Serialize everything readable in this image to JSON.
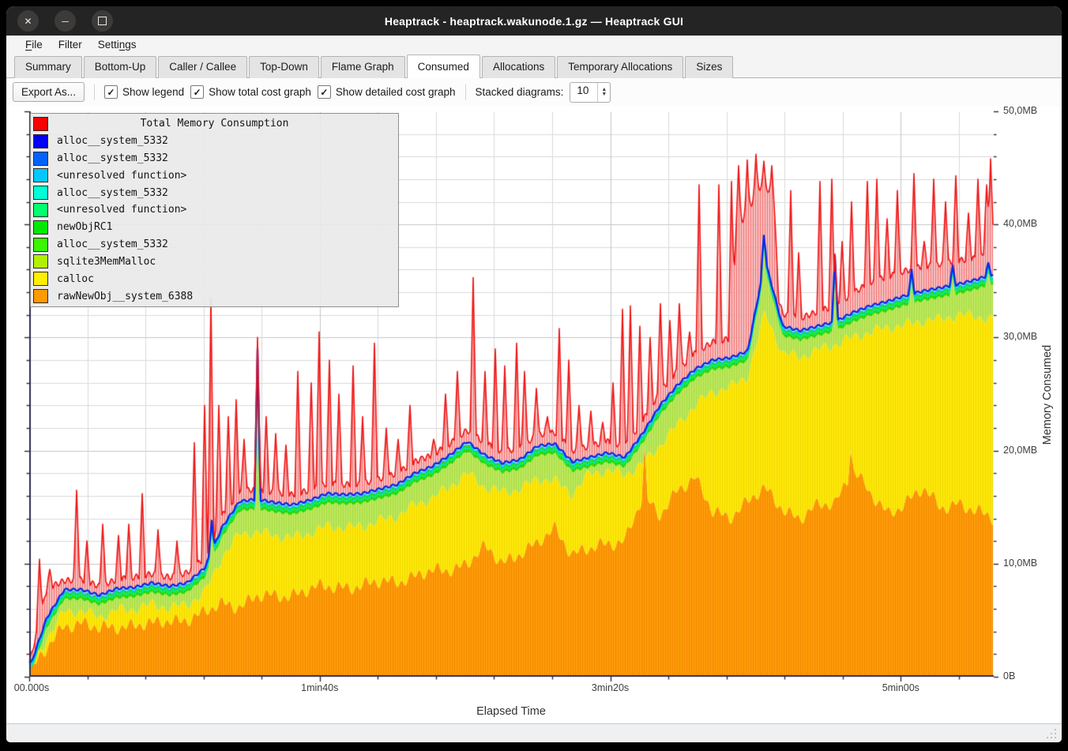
{
  "window": {
    "title": "Heaptrack - heaptrack.wakunode.1.gz — Heaptrack GUI",
    "controls": [
      {
        "name": "close"
      },
      {
        "name": "minimize"
      },
      {
        "name": "maximize"
      }
    ]
  },
  "menu": {
    "items": [
      {
        "label": "File",
        "accel": 0
      },
      {
        "label": "Filter",
        "accel": -1
      },
      {
        "label": "Settings",
        "accel": 5
      }
    ]
  },
  "tabs": {
    "active_index": 5,
    "items": [
      "Summary",
      "Bottom-Up",
      "Caller / Callee",
      "Top-Down",
      "Flame Graph",
      "Consumed",
      "Allocations",
      "Temporary Allocations",
      "Sizes"
    ]
  },
  "toolbar": {
    "export_label": "Export As...",
    "checkboxes": [
      {
        "label": "Show legend",
        "checked": true,
        "glyph": "✓"
      },
      {
        "label": "Show total cost graph",
        "checked": true,
        "glyph": "✓"
      },
      {
        "label": "Show detailed cost graph",
        "checked": true,
        "glyph": "✓"
      }
    ],
    "stacked_label": "Stacked diagrams:",
    "stacked_value": "10"
  },
  "statusbar": {
    "text": ""
  },
  "chart_data": {
    "type": "area",
    "title": "Total Memory Consumption",
    "xlabel": "Elapsed Time",
    "ylabel": "Memory Consumed",
    "ylim": [
      0,
      50
    ],
    "duration_s": 332,
    "grid": true,
    "legend_position": "top-left",
    "legend": [
      {
        "label": "Total Memory Consumption",
        "color": "#fb0000"
      },
      {
        "label": "alloc__system_5332",
        "color": "#0000f5"
      },
      {
        "label": "alloc__system_5332",
        "color": "#0063ff"
      },
      {
        "label": "<unresolved function>",
        "color": "#00c8ff"
      },
      {
        "label": "alloc__system_5332",
        "color": "#00ffd5"
      },
      {
        "label": "<unresolved function>",
        "color": "#00ff6e"
      },
      {
        "label": "newObjRC1",
        "color": "#00e800"
      },
      {
        "label": "alloc__system_5332",
        "color": "#3cf500"
      },
      {
        "label": "sqlite3MemMalloc",
        "color": "#b2f000"
      },
      {
        "label": "calloc",
        "color": "#ffee00"
      },
      {
        "label": "rawNewObj__system_6388",
        "color": "#ff9900"
      }
    ],
    "y_ticks": {
      "minor_step_mb": 2,
      "majors": [
        {
          "mb": 0,
          "label": "0B"
        },
        {
          "mb": 10,
          "label": "10,0MB"
        },
        {
          "mb": 20,
          "label": "20,0MB"
        },
        {
          "mb": 30,
          "label": "30,0MB"
        },
        {
          "mb": 40,
          "label": "40,0MB"
        },
        {
          "mb": 50,
          "label": "50,0MB"
        }
      ]
    },
    "x_ticks": {
      "minor_step_s": 20,
      "majors": [
        {
          "s": 0,
          "label": "00.000s"
        },
        {
          "s": 100,
          "label": "1min40s"
        },
        {
          "s": 200,
          "label": "3min20s"
        },
        {
          "s": 300,
          "label": "5min00s"
        }
      ]
    },
    "band_colors": {
      "orange": [
        "#f28900",
        "#ff9d0a"
      ],
      "yellow": [
        "#f0d800",
        "#ffe90a"
      ],
      "yellowgreen": [
        "#a8da42",
        "#bce95e"
      ],
      "green": [
        "#28c804",
        "#33e00a"
      ],
      "spring_line": "#00f09c",
      "cyan_line": "#00c8ff",
      "blue_line": "#0a28e8",
      "red_line": "#f01414",
      "red_hatch": [
        "#ec5c5c",
        "#f8b2b2"
      ]
    },
    "cumulative_tops_mb": {
      "note": "56 uniform samples spanning 0..duration_s; stacked layer top edges in MB",
      "orange": [
        0.25,
        2.4,
        4.7,
        4.8,
        4.1,
        4.5,
        4.7,
        4.5,
        5.0,
        5.2,
        5.5,
        6.5,
        6.4,
        7.0,
        7.1,
        7.4,
        7.7,
        7.9,
        8.1,
        8.0,
        8.3,
        8.6,
        8.9,
        9.2,
        9.6,
        10.1,
        11.3,
        10.2,
        11.0,
        11.6,
        13.2,
        11.0,
        11.2,
        11.7,
        12.3,
        15.8,
        14.2,
        16.8,
        17.5,
        14.5,
        14.3,
        15.5,
        16.5,
        15.0,
        14.0,
        15.0,
        15.5,
        18.5,
        16.0,
        14.5,
        15.5,
        16.5,
        15.0,
        15.5,
        14.5,
        14.0
      ],
      "yellow": [
        0.45,
        3.4,
        5.8,
        5.8,
        5.3,
        5.9,
        6.0,
        6.4,
        6.1,
        6.4,
        7.4,
        10.6,
        12.6,
        12.8,
        12.5,
        12.3,
        12.7,
        13.3,
        13.2,
        13.3,
        13.8,
        14.2,
        15.2,
        15.8,
        16.8,
        18.0,
        16.8,
        16.3,
        16.6,
        17.5,
        17.3,
        16.2,
        18.0,
        18.2,
        17.9,
        18.8,
        20.5,
        22.3,
        24.0,
        25.2,
        25.6,
        26.6,
        32.2,
        28.6,
        28.3,
        28.9,
        29.4,
        30.0,
        30.5,
        30.9,
        31.1,
        31.5,
        31.6,
        32.0,
        31.9,
        31.6
      ],
      "blue": [
        0.7,
        5.2,
        7.7,
        7.7,
        7.2,
        7.8,
        7.9,
        8.3,
        8.0,
        8.3,
        9.6,
        13.2,
        15.5,
        15.7,
        15.4,
        15.2,
        15.6,
        16.2,
        16.1,
        16.2,
        16.6,
        17.0,
        18.0,
        18.6,
        19.6,
        20.8,
        19.6,
        18.9,
        19.2,
        20.4,
        20.6,
        19.0,
        19.4,
        19.8,
        19.4,
        21.5,
        24.0,
        25.8,
        27.2,
        28.0,
        28.2,
        28.8,
        36.8,
        31.0,
        30.6,
        31.0,
        31.4,
        32.2,
        32.8,
        33.2,
        33.7,
        34.1,
        34.4,
        34.7,
        35.1,
        35.6
      ],
      "red_base": [
        1.1,
        7.8,
        8.5,
        8.6,
        8.0,
        8.6,
        8.8,
        9.1,
        8.8,
        9.2,
        10.5,
        14.2,
        16.4,
        16.6,
        16.3,
        16.1,
        16.5,
        17.1,
        17.0,
        17.1,
        17.5,
        18.0,
        19.0,
        19.6,
        20.6,
        21.8,
        20.7,
        19.9,
        20.2,
        21.4,
        21.6,
        20.0,
        20.4,
        20.8,
        20.4,
        22.6,
        25.2,
        27.1,
        28.6,
        29.6,
        29.9,
        30.4,
        37.4,
        32.1,
        31.7,
        32.3,
        32.8,
        33.9,
        34.9,
        35.4,
        35.9,
        36.3,
        36.5,
        36.8,
        37.0,
        38.2
      ]
    },
    "red_spikes": [
      [
        3.5,
        10.4
      ],
      [
        7,
        9.5
      ],
      [
        16.3,
        16.5
      ],
      [
        19.8,
        12
      ],
      [
        25.2,
        13.5
      ],
      [
        30.7,
        12.5
      ],
      [
        34.2,
        13.5
      ],
      [
        38.8,
        16.2
      ],
      [
        44.3,
        13
      ],
      [
        51,
        12
      ],
      [
        57,
        20.7
      ],
      [
        60.5,
        24
      ],
      [
        62.7,
        33.5
      ],
      [
        65.4,
        24
      ],
      [
        68.7,
        23
      ],
      [
        71.4,
        24.5
      ],
      [
        74.1,
        21
      ],
      [
        78.7,
        30
      ],
      [
        81.7,
        23
      ],
      [
        85,
        21.5
      ],
      [
        88.5,
        20.5
      ],
      [
        92.6,
        27
      ],
      [
        97.2,
        26
      ],
      [
        99.9,
        30.5
      ],
      [
        103.4,
        28
      ],
      [
        106.7,
        25
      ],
      [
        111.6,
        27.5
      ],
      [
        114.8,
        23
      ],
      [
        118.9,
        29.5
      ],
      [
        123,
        22
      ],
      [
        127,
        21
      ],
      [
        131.1,
        24
      ],
      [
        135.2,
        19.5
      ],
      [
        139.3,
        21
      ],
      [
        143.3,
        25
      ],
      [
        147.4,
        27
      ],
      [
        152.9,
        35.3
      ],
      [
        156.9,
        27
      ],
      [
        160.5,
        29
      ],
      [
        163.7,
        27.5
      ],
      [
        167.8,
        29.5
      ],
      [
        170.5,
        27
      ],
      [
        174.6,
        25.5
      ],
      [
        178.6,
        23
      ],
      [
        182.7,
        30.8
      ],
      [
        186,
        28
      ],
      [
        189.5,
        24
      ],
      [
        193.6,
        23.5
      ],
      [
        197.7,
        22.5
      ],
      [
        201.2,
        26
      ],
      [
        204.4,
        32.5
      ],
      [
        207.2,
        32.8
      ],
      [
        210.4,
        31
      ],
      [
        214,
        30
      ],
      [
        217.5,
        33
      ],
      [
        220.7,
        31.5
      ],
      [
        224,
        33
      ],
      [
        227.5,
        30.5
      ],
      [
        230.8,
        43.5
      ],
      [
        237.6,
        43.5
      ],
      [
        241.9,
        43.8
      ],
      [
        244.5,
        45.2,
        8
      ],
      [
        247.3,
        45.7,
        9
      ],
      [
        250.3,
        46.2,
        9
      ],
      [
        253.2,
        45.6,
        9
      ],
      [
        255.9,
        45.2,
        8
      ],
      [
        262.3,
        43
      ],
      [
        265,
        37.5
      ],
      [
        272.3,
        43.8
      ],
      [
        276.4,
        44
      ],
      [
        280,
        38.5
      ],
      [
        283.2,
        42
      ],
      [
        288.7,
        43.8
      ],
      [
        291.9,
        44
      ],
      [
        295.4,
        40.5
      ],
      [
        299,
        43
      ],
      [
        304.9,
        44.5
      ],
      [
        308.2,
        38.5
      ],
      [
        311.7,
        44
      ],
      [
        315.8,
        42
      ],
      [
        319.1,
        44.3
      ],
      [
        323.5,
        41
      ],
      [
        326.7,
        44
      ],
      [
        329.9,
        43.5
      ],
      [
        331.3,
        45.8
      ]
    ],
    "blue_spikes": [
      [
        62.8,
        13.8
      ],
      [
        78.7,
        29
      ],
      [
        253,
        39
      ],
      [
        277.5,
        37.2
      ],
      [
        304,
        36
      ],
      [
        318,
        36.4
      ],
      [
        330.5,
        36.6
      ]
    ],
    "orange_spikes": [
      [
        212,
        20.5
      ],
      [
        283,
        20
      ]
    ]
  }
}
